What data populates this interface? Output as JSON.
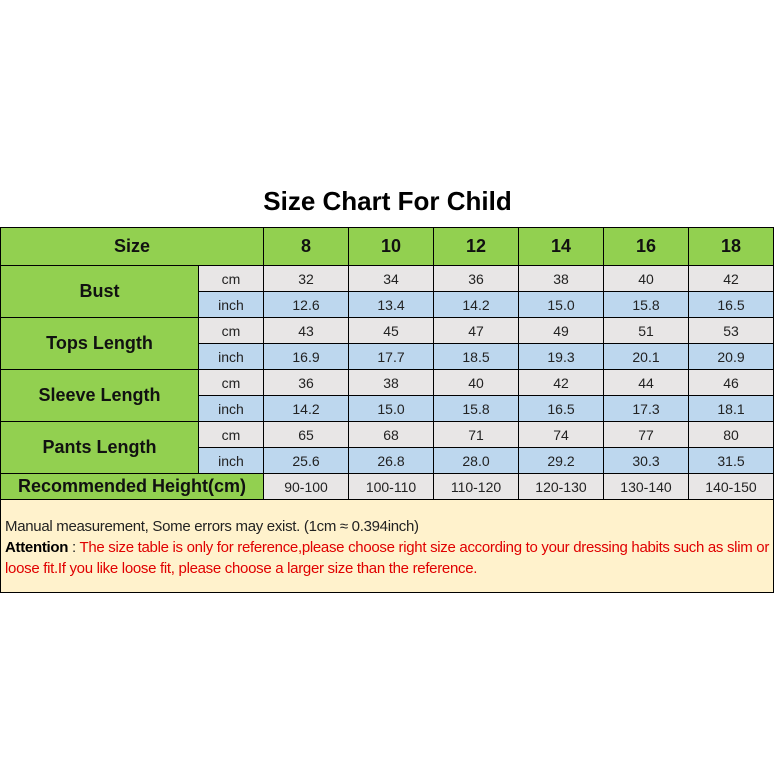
{
  "title": "Size Chart For Child",
  "header": {
    "label": "Size",
    "sizes": [
      "8",
      "10",
      "12",
      "14",
      "16",
      "18"
    ]
  },
  "units": {
    "cm": "cm",
    "inch": "inch"
  },
  "measurements": [
    {
      "name": "Bust",
      "cm": [
        "32",
        "34",
        "36",
        "38",
        "40",
        "42"
      ],
      "inch": [
        "12.6",
        "13.4",
        "14.2",
        "15.0",
        "15.8",
        "16.5"
      ]
    },
    {
      "name": "Tops Length",
      "cm": [
        "43",
        "45",
        "47",
        "49",
        "51",
        "53"
      ],
      "inch": [
        "16.9",
        "17.7",
        "18.5",
        "19.3",
        "20.1",
        "20.9"
      ]
    },
    {
      "name": "Sleeve Length",
      "cm": [
        "36",
        "38",
        "40",
        "42",
        "44",
        "46"
      ],
      "inch": [
        "14.2",
        "15.0",
        "15.8",
        "16.5",
        "17.3",
        "18.1"
      ]
    },
    {
      "name": "Pants Length",
      "cm": [
        "65",
        "68",
        "71",
        "74",
        "77",
        "80"
      ],
      "inch": [
        "25.6",
        "26.8",
        "28.0",
        "29.2",
        "30.3",
        "31.5"
      ]
    }
  ],
  "height": {
    "label": "Recommended Height(cm)",
    "values": [
      "90-100",
      "100-110",
      "110-120",
      "120-130",
      "130-140",
      "140-150"
    ]
  },
  "note": {
    "line1": "Manual measurement, Some errors may exist.  (1cm ≈ 0.394inch)",
    "attention_label": "Attention",
    "attention_sep": " : ",
    "attention_text": "The size table is only for reference,please choose right size according to your dressing habits such as slim or loose fit.If you like loose fit, please choose a larger size than the reference."
  },
  "colors": {
    "header_green": "#92d050",
    "cm_row": "#e8e6e6",
    "inch_row": "#bdd7ee",
    "note_bg": "#fff2cc",
    "attention_red": "#e00000"
  }
}
